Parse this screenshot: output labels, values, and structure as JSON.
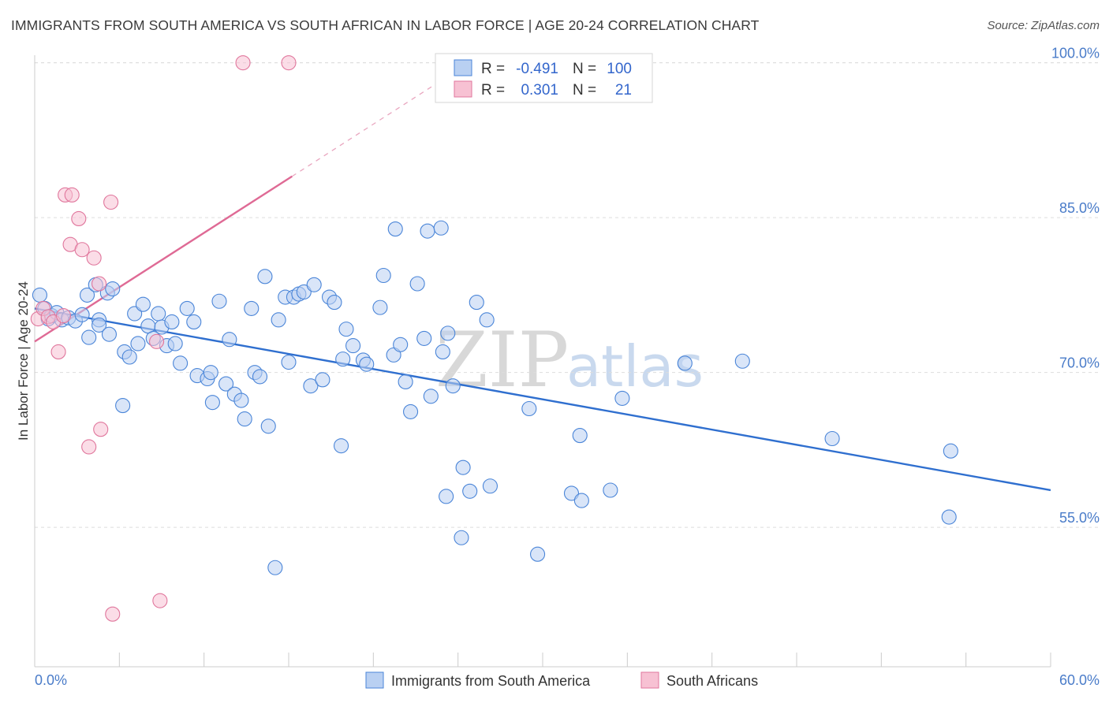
{
  "title": "IMMIGRANTS FROM SOUTH AMERICA VS SOUTH AFRICAN IN LABOR FORCE | AGE 20-24 CORRELATION CHART",
  "source": "Source: ZipAtlas.com",
  "watermark": {
    "zip": "ZIP",
    "atlas": "atlas"
  },
  "colors": {
    "blue": "#4a85d8",
    "blue_fill": "#b9d0f2",
    "pink": "#e0769c",
    "pink_fill": "#f7c1d3",
    "grid": "#dddddd",
    "axis_text": "#4a7cc9"
  },
  "legend": {
    "r_label": "R =",
    "n_label": "N =",
    "rows": [
      {
        "r": "-0.491",
        "n": "100"
      },
      {
        "r": "0.301",
        "n": "21"
      }
    ]
  },
  "chart_data": {
    "type": "scatter",
    "title": "IMMIGRANTS FROM SOUTH AMERICA VS SOUTH AFRICAN IN LABOR FORCE | AGE 20-24 CORRELATION CHART",
    "xlabel": "",
    "ylabel": "In Labor Force | Age 20-24",
    "xlim": [
      0,
      60
    ],
    "ylim": [
      41.5,
      101.5
    ],
    "x_tick_labels": [
      "0.0%",
      "60.0%"
    ],
    "y_ticks": [
      55,
      70,
      85,
      100
    ],
    "y_tick_labels": [
      "55.0%",
      "70.0%",
      "85.0%",
      "100.0%"
    ],
    "grid": true,
    "legend_position": "top-center",
    "series": [
      {
        "name": "Immigrants from South America",
        "trend": {
          "x": [
            0,
            60
          ],
          "y": [
            76.2,
            58.6
          ],
          "style": "solid"
        },
        "points": [
          [
            0.3,
            77.5
          ],
          [
            0.6,
            76.2
          ],
          [
            0.8,
            75.2
          ],
          [
            1.0,
            75.5
          ],
          [
            1.3,
            75.8
          ],
          [
            1.6,
            75.1
          ],
          [
            2.0,
            75.3
          ],
          [
            2.4,
            75.0
          ],
          [
            2.8,
            75.6
          ],
          [
            3.1,
            77.5
          ],
          [
            3.6,
            78.5
          ],
          [
            3.8,
            75.1
          ],
          [
            3.2,
            73.4
          ],
          [
            4.3,
            77.7
          ],
          [
            4.6,
            78.1
          ],
          [
            3.8,
            74.6
          ],
          [
            4.4,
            73.7
          ],
          [
            5.2,
            66.8
          ],
          [
            5.3,
            72.0
          ],
          [
            5.6,
            71.5
          ],
          [
            5.9,
            75.7
          ],
          [
            6.1,
            72.8
          ],
          [
            6.4,
            76.6
          ],
          [
            6.7,
            74.5
          ],
          [
            7.0,
            73.3
          ],
          [
            7.3,
            75.7
          ],
          [
            7.5,
            74.4
          ],
          [
            7.8,
            72.6
          ],
          [
            8.1,
            74.9
          ],
          [
            8.3,
            72.8
          ],
          [
            8.6,
            70.9
          ],
          [
            9.0,
            76.2
          ],
          [
            9.4,
            74.9
          ],
          [
            9.6,
            69.7
          ],
          [
            10.2,
            69.4
          ],
          [
            10.4,
            70.0
          ],
          [
            10.5,
            67.1
          ],
          [
            10.9,
            76.9
          ],
          [
            11.3,
            68.9
          ],
          [
            11.5,
            73.2
          ],
          [
            11.8,
            67.9
          ],
          [
            12.2,
            67.3
          ],
          [
            12.4,
            65.5
          ],
          [
            12.8,
            76.2
          ],
          [
            13.0,
            70.0
          ],
          [
            13.3,
            69.6
          ],
          [
            13.6,
            79.3
          ],
          [
            13.8,
            64.8
          ],
          [
            14.2,
            51.1
          ],
          [
            14.4,
            75.1
          ],
          [
            14.8,
            77.3
          ],
          [
            15.0,
            71.0
          ],
          [
            15.3,
            77.3
          ],
          [
            15.6,
            77.6
          ],
          [
            15.9,
            77.8
          ],
          [
            16.3,
            68.7
          ],
          [
            16.5,
            78.5
          ],
          [
            17.0,
            69.3
          ],
          [
            17.4,
            77.3
          ],
          [
            17.7,
            76.8
          ],
          [
            18.1,
            62.9
          ],
          [
            18.2,
            71.3
          ],
          [
            18.4,
            74.2
          ],
          [
            18.8,
            72.6
          ],
          [
            19.4,
            71.2
          ],
          [
            19.6,
            70.8
          ],
          [
            20.4,
            76.3
          ],
          [
            20.6,
            79.4
          ],
          [
            21.3,
            83.9
          ],
          [
            21.2,
            71.7
          ],
          [
            21.6,
            72.7
          ],
          [
            21.9,
            69.1
          ],
          [
            22.2,
            66.2
          ],
          [
            22.6,
            78.6
          ],
          [
            23.0,
            73.3
          ],
          [
            23.2,
            83.7
          ],
          [
            23.4,
            67.7
          ],
          [
            24.1,
            72.0
          ],
          [
            24.4,
            73.8
          ],
          [
            24.7,
            68.7
          ],
          [
            24.0,
            84.0
          ],
          [
            24.3,
            58.0
          ],
          [
            25.2,
            54.0
          ],
          [
            25.3,
            60.8
          ],
          [
            25.7,
            58.5
          ],
          [
            26.1,
            76.8
          ],
          [
            26.7,
            75.1
          ],
          [
            26.9,
            59.0
          ],
          [
            29.2,
            66.5
          ],
          [
            29.7,
            52.4
          ],
          [
            31.7,
            58.3
          ],
          [
            32.2,
            63.9
          ],
          [
            32.3,
            57.6
          ],
          [
            34.0,
            58.6
          ],
          [
            34.7,
            67.5
          ],
          [
            38.4,
            70.9
          ],
          [
            41.8,
            71.1
          ],
          [
            47.1,
            63.6
          ],
          [
            54.1,
            62.4
          ],
          [
            54.0,
            56.0
          ]
        ]
      },
      {
        "name": "South Africans",
        "trend": {
          "x": [
            0,
            15.2
          ],
          "y": [
            73.0,
            89.0
          ],
          "style": "solid",
          "extension": {
            "x": [
              15.2,
              24.6
            ],
            "y": [
              89.0,
              98.9
            ],
            "style": "dashed"
          }
        },
        "points": [
          [
            0.2,
            75.2
          ],
          [
            0.5,
            76.2
          ],
          [
            0.8,
            75.4
          ],
          [
            1.1,
            74.9
          ],
          [
            1.4,
            72.0
          ],
          [
            1.7,
            75.5
          ],
          [
            1.8,
            87.2
          ],
          [
            2.2,
            87.2
          ],
          [
            2.1,
            82.4
          ],
          [
            2.6,
            84.9
          ],
          [
            2.8,
            81.9
          ],
          [
            3.5,
            81.1
          ],
          [
            3.8,
            78.6
          ],
          [
            3.2,
            62.8
          ],
          [
            3.9,
            64.5
          ],
          [
            4.5,
            86.5
          ],
          [
            4.6,
            46.6
          ],
          [
            7.2,
            73.0
          ],
          [
            7.4,
            47.9
          ],
          [
            12.3,
            100.0
          ],
          [
            15.0,
            100.0
          ]
        ]
      }
    ]
  },
  "bottom_legend": [
    "Immigrants from South America",
    "South Africans"
  ]
}
